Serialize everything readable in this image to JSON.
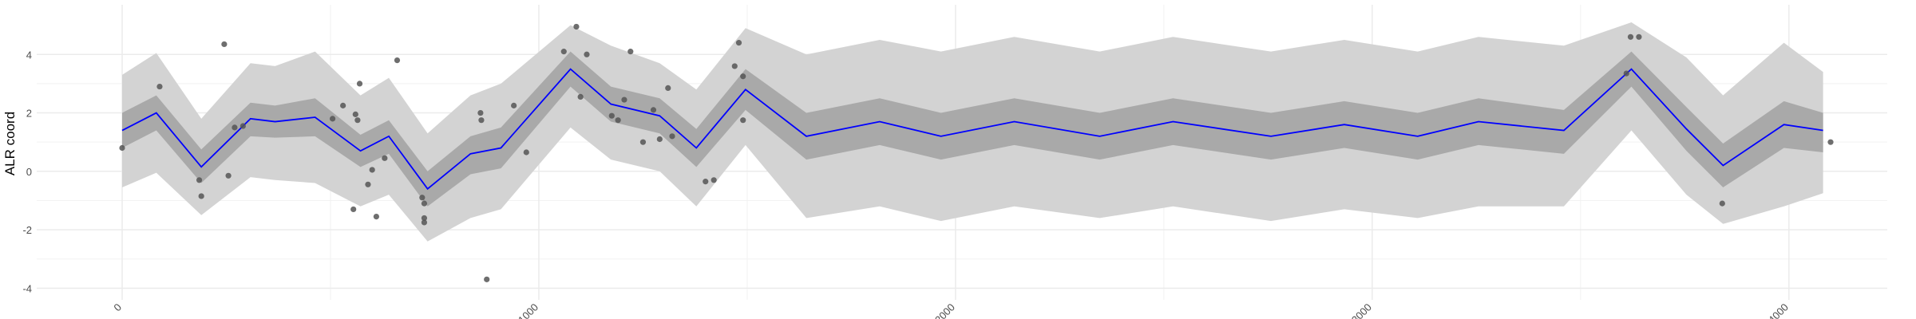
{
  "chart_data": {
    "type": "line",
    "y_label": "ALR coord",
    "xlim": [
      -205,
      4236
    ],
    "ylim": [
      -4.4,
      5.7
    ],
    "xticks": [
      0,
      1000,
      2000,
      3000,
      4000
    ],
    "yticks": [
      -4,
      -2,
      0,
      2,
      4
    ],
    "grid": true,
    "x": [
      0,
      82,
      190,
      308,
      367,
      463,
      572,
      640,
      733,
      836,
      909,
      1076,
      1173,
      1290,
      1378,
      1496,
      1642,
      1818,
      1965,
      2141,
      2346,
      2522,
      2757,
      2933,
      3109,
      3255,
      3460,
      3622,
      3754,
      3842,
      3988,
      4082
    ],
    "mean": {
      "color": "#0000ff",
      "values": [
        1.4,
        2.0,
        0.15,
        1.8,
        1.7,
        1.85,
        0.7,
        1.2,
        -0.6,
        0.6,
        0.8,
        3.5,
        2.3,
        1.9,
        0.8,
        2.8,
        1.2,
        1.7,
        1.2,
        1.7,
        1.2,
        1.7,
        1.2,
        1.6,
        1.2,
        1.7,
        1.4,
        3.5,
        1.45,
        0.2,
        1.6,
        1.4
      ]
    },
    "inner_band": {
      "color": "#a9a9a9",
      "lower": [
        0.8,
        1.4,
        -0.4,
        1.2,
        1.15,
        1.2,
        0.15,
        0.6,
        -1.2,
        -0.1,
        0.1,
        2.9,
        1.7,
        1.3,
        0.15,
        2.1,
        0.4,
        0.9,
        0.4,
        0.9,
        0.4,
        0.9,
        0.4,
        0.8,
        0.4,
        0.9,
        0.6,
        2.9,
        0.7,
        -0.55,
        0.8,
        0.65
      ],
      "upper": [
        2.0,
        2.6,
        0.75,
        2.35,
        2.25,
        2.5,
        1.25,
        1.75,
        0.0,
        1.2,
        1.5,
        4.1,
        2.9,
        2.5,
        1.45,
        3.5,
        2.0,
        2.5,
        2.0,
        2.5,
        2.0,
        2.5,
        2.0,
        2.4,
        2.0,
        2.5,
        2.1,
        4.1,
        2.2,
        0.95,
        2.4,
        2.0
      ]
    },
    "outer_band": {
      "color": "#d3d3d3",
      "lower": [
        -0.55,
        -0.05,
        -1.5,
        -0.2,
        -0.3,
        -0.4,
        -1.2,
        -0.8,
        -2.4,
        -1.6,
        -1.3,
        1.5,
        0.4,
        0.0,
        -1.2,
        0.9,
        -1.6,
        -1.2,
        -1.7,
        -1.2,
        -1.6,
        -1.2,
        -1.7,
        -1.3,
        -1.6,
        -1.2,
        -1.2,
        1.4,
        -0.8,
        -1.8,
        -1.2,
        -0.75
      ],
      "upper": [
        3.3,
        4.05,
        1.8,
        3.7,
        3.6,
        4.1,
        2.6,
        3.2,
        1.3,
        2.6,
        3.0,
        5.0,
        4.3,
        3.7,
        2.8,
        4.9,
        4.0,
        4.5,
        4.1,
        4.6,
        4.1,
        4.6,
        4.1,
        4.5,
        4.1,
        4.6,
        4.3,
        5.1,
        3.9,
        2.6,
        4.4,
        3.4
      ]
    },
    "points": {
      "color": "#555555",
      "x": [
        0,
        90,
        185,
        190,
        245,
        255,
        270,
        290,
        505,
        530,
        555,
        560,
        565,
        570,
        590,
        600,
        610,
        630,
        660,
        720,
        725,
        725,
        725,
        860,
        862,
        875,
        940,
        970,
        1060,
        1090,
        1100,
        1115,
        1175,
        1190,
        1205,
        1220,
        1250,
        1275,
        1290,
        1310,
        1320,
        1400,
        1420,
        1470,
        1480,
        1490,
        1490,
        3610,
        3620,
        3640,
        3840,
        4100
      ],
      "y": [
        0.8,
        2.9,
        -0.3,
        -0.85,
        4.35,
        -0.15,
        1.5,
        1.55,
        1.8,
        2.25,
        -1.3,
        1.95,
        1.75,
        3.0,
        -0.45,
        0.05,
        -1.55,
        0.45,
        3.8,
        -0.9,
        -1.1,
        -1.6,
        -1.75,
        2.0,
        1.75,
        -3.7,
        2.25,
        0.65,
        4.1,
        4.95,
        2.55,
        4.0,
        1.9,
        1.75,
        2.45,
        4.1,
        1.0,
        2.1,
        1.1,
        2.85,
        1.2,
        -0.35,
        -0.3,
        3.6,
        4.4,
        3.25,
        1.75,
        3.35,
        4.6,
        4.6,
        -1.1,
        1.0
      ]
    }
  }
}
